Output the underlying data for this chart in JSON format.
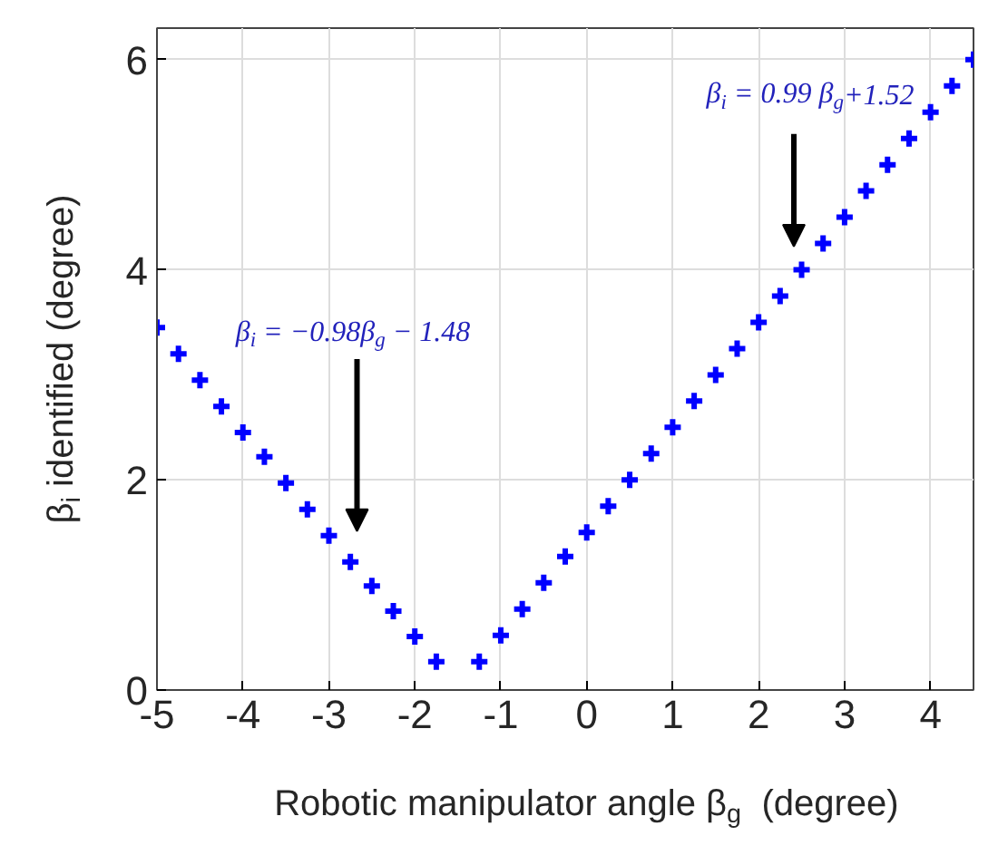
{
  "chart_data": {
    "type": "scatter",
    "xlabel": "Robotic manipulator angle β$_{g}$  (degree)",
    "ylabel": "β$_{i}$ identified (degree)",
    "x": [
      -5,
      -4.75,
      -4.5,
      -4.25,
      -4,
      -3.75,
      -3.5,
      -3.25,
      -3,
      -2.75,
      -2.5,
      -2.25,
      -2,
      -1.75,
      -1.25,
      -1,
      -0.75,
      -0.5,
      -0.25,
      0,
      0.25,
      0.5,
      0.75,
      1,
      1.25,
      1.5,
      1.75,
      2,
      2.25,
      2.5,
      2.75,
      3,
      3.25,
      3.5,
      3.75,
      4,
      4.25,
      4.5
    ],
    "series": [
      {
        "color": "#0000ff",
        "values": [
          3.45,
          3.2,
          2.95,
          2.7,
          2.45,
          2.22,
          1.97,
          1.72,
          1.47,
          1.22,
          0.99,
          0.75,
          0.51,
          0.27,
          0.27,
          0.52,
          0.77,
          1.02,
          1.27,
          1.5,
          1.75,
          2.0,
          2.25,
          2.5,
          2.75,
          3.0,
          3.25,
          3.5,
          3.75,
          4.0,
          4.25,
          4.5,
          4.75,
          5.0,
          5.25,
          5.5,
          5.75,
          6.0
        ]
      }
    ],
    "marker": "cross",
    "grid": true,
    "xlim": [
      -5,
      4.5
    ],
    "ylim": [
      0,
      6.3
    ],
    "xticks": [
      -5,
      -4,
      -3,
      -2,
      -1,
      0,
      1,
      2,
      3,
      4
    ],
    "yticks": [
      0,
      2,
      4,
      6
    ],
    "annotations": [
      "β$_{i}$ = −0.98β$_{g}$ − 1.48",
      "β$_{i}$ = 0.99 β$_{g}$+1.52"
    ]
  }
}
